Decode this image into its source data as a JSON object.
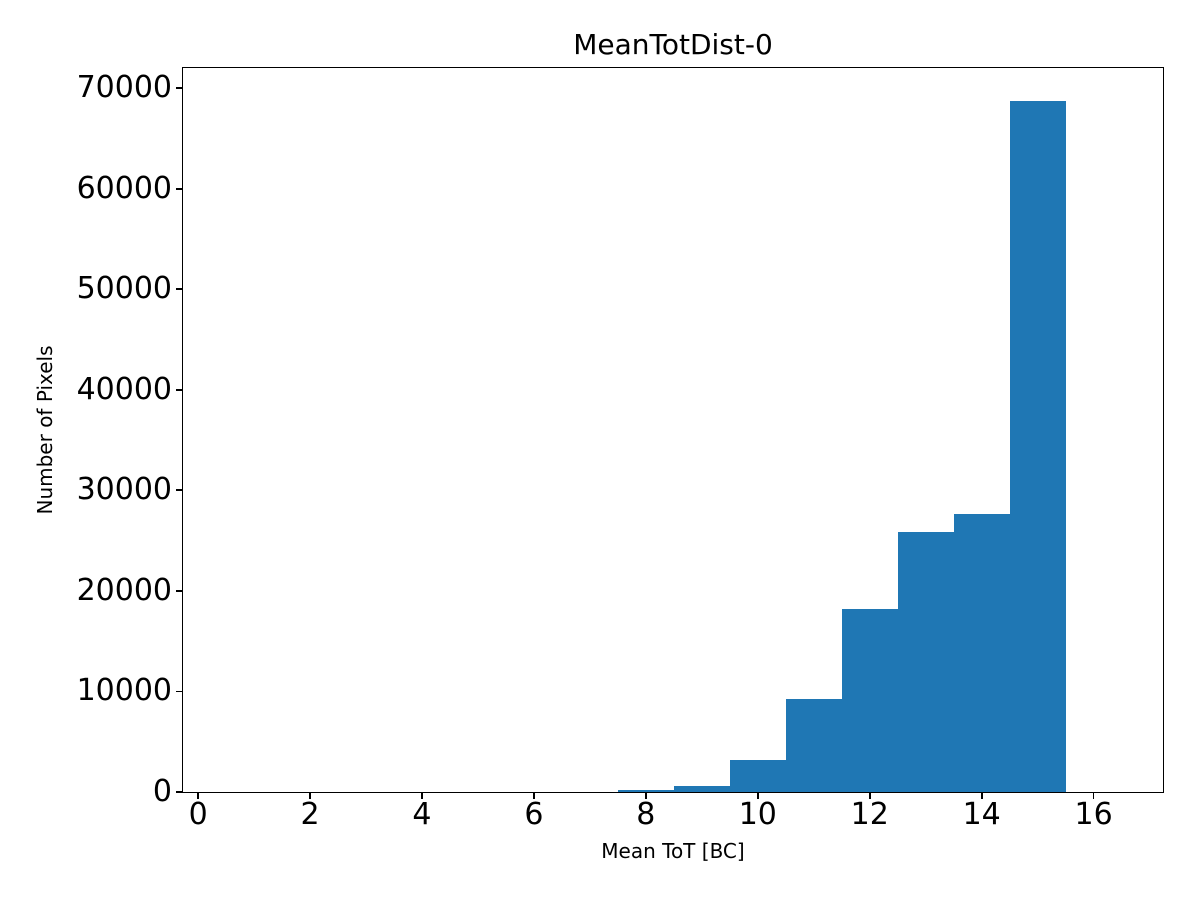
{
  "chart_data": {
    "type": "bar",
    "title": "MeanTotDist-0",
    "xlabel": "Mean ToT [BC]",
    "ylabel": "Number of Pixels",
    "bar_color": "#1f77b4",
    "axis_color": "#000000",
    "background_color": "#ffffff",
    "grid": false,
    "legend": null,
    "bin_edges": [
      0.5,
      1.5,
      2.5,
      3.5,
      4.5,
      5.5,
      6.5,
      7.5,
      8.5,
      9.5,
      10.5,
      11.5,
      12.5,
      13.5,
      14.5,
      15.5,
      16.5
    ],
    "counts": [
      0,
      0,
      0,
      0,
      0,
      0,
      0,
      170,
      600,
      3150,
      9200,
      18200,
      25900,
      27600,
      68700,
      0
    ],
    "xlim": [
      -0.27,
      17.24
    ],
    "ylim": [
      0,
      72000
    ],
    "xticks": [
      0,
      2,
      4,
      6,
      8,
      10,
      12,
      14,
      16
    ],
    "xtick_labels": [
      "0",
      "2",
      "4",
      "6",
      "8",
      "10",
      "12",
      "14",
      "16"
    ],
    "yticks": [
      0,
      10000,
      20000,
      30000,
      40000,
      50000,
      60000,
      70000
    ],
    "ytick_labels": [
      "0",
      "10000",
      "20000",
      "30000",
      "40000",
      "50000",
      "60000",
      "70000"
    ]
  }
}
